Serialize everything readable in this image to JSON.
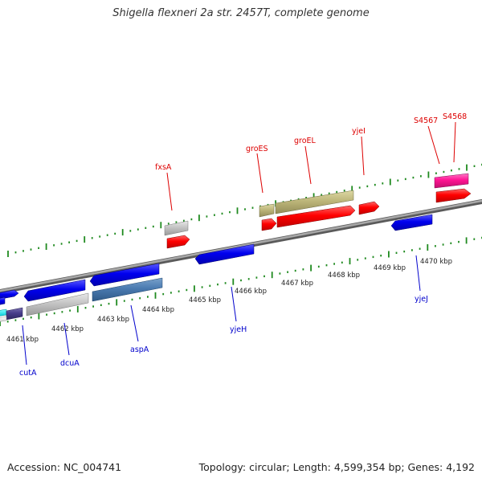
{
  "title": "Shigella flexneri 2a str. 2457T, complete genome",
  "footer": {
    "accession": "Accession: NC_004741",
    "topology": "Topology: circular; Length: 4,599,354 bp; Genes: 4,192"
  },
  "scale_labels": [
    "4461 kbp",
    "4462 kbp",
    "4463 kbp",
    "4464 kbp",
    "4465 kbp",
    "4466 kbp",
    "4467 kbp",
    "4468 kbp",
    "4469 kbp",
    "4470 kbp"
  ],
  "upper_labels": [
    "fxsA",
    "groES",
    "groEL",
    "yjeI",
    "S4567",
    "S4568"
  ],
  "lower_labels": [
    "cutA",
    "dcuA",
    "aspA",
    "yjeH",
    "yjeJ"
  ],
  "colors": {
    "backbone": "#808080",
    "tick": "#1f8a1f",
    "upper_label": "#dd0000",
    "lower_label": "#0000cc"
  }
}
